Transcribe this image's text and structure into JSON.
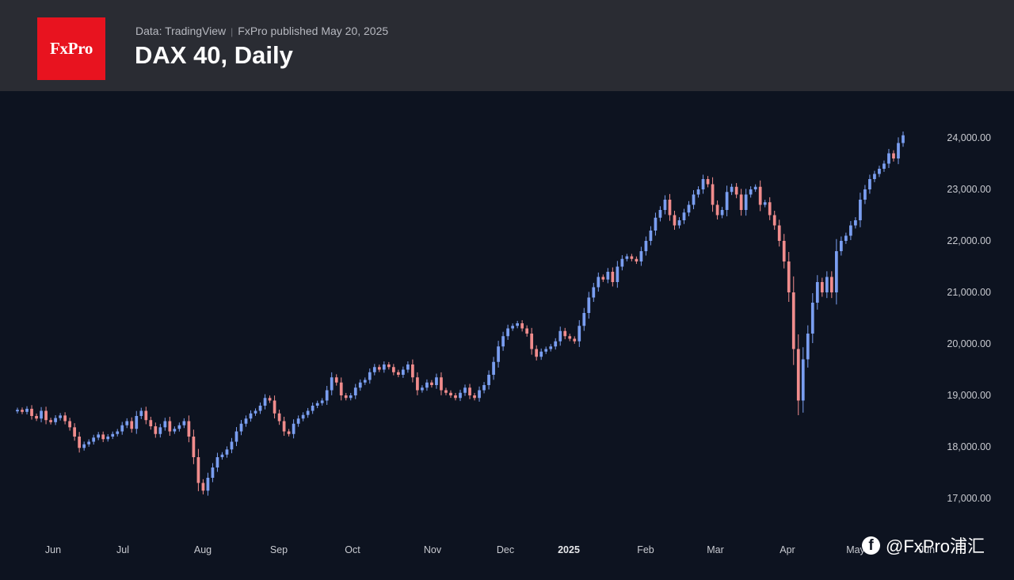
{
  "header": {
    "logo_text": "FxPro",
    "data_source": "Data: TradingView",
    "published": "FxPro published May 20, 2025",
    "title": "DAX 40, Daily"
  },
  "colors": {
    "up": "#7a9ef0",
    "down": "#f08c8c",
    "background": "#0d1320",
    "header": "#2a2c33",
    "logo": "#e8131f"
  },
  "watermark": {
    "icon": "facebook-icon",
    "text": "@FxPro浦汇"
  },
  "chart_data": {
    "type": "candlestick",
    "title": "DAX 40, Daily",
    "y_axis": {
      "position": "right",
      "ticks": [
        "24,000.00",
        "23,000.00",
        "22,000.00",
        "21,000.00",
        "20,000.00",
        "19,000.00",
        "18,000.00",
        "17,000.00"
      ],
      "range": [
        16500,
        24950
      ]
    },
    "x_axis": {
      "ticks": [
        {
          "label": "Jun",
          "bold": false
        },
        {
          "label": "Jul",
          "bold": false
        },
        {
          "label": "Aug",
          "bold": false
        },
        {
          "label": "Sep",
          "bold": false
        },
        {
          "label": "Oct",
          "bold": false
        },
        {
          "label": "Nov",
          "bold": false
        },
        {
          "label": "Dec",
          "bold": false
        },
        {
          "label": "2025",
          "bold": true
        },
        {
          "label": "Feb",
          "bold": false
        },
        {
          "label": "Mar",
          "bold": false
        },
        {
          "label": "Apr",
          "bold": false
        },
        {
          "label": "May",
          "bold": false
        },
        {
          "label": "Jun",
          "bold": false
        }
      ]
    },
    "grid": false,
    "close_series": [
      18720,
      18680,
      18740,
      18600,
      18550,
      18700,
      18520,
      18480,
      18560,
      18610,
      18500,
      18380,
      18200,
      17980,
      18050,
      18100,
      18180,
      18240,
      18150,
      18200,
      18250,
      18300,
      18420,
      18500,
      18350,
      18600,
      18700,
      18520,
      18400,
      18250,
      18380,
      18500,
      18300,
      18350,
      18420,
      18500,
      18200,
      17800,
      17300,
      17150,
      17400,
      17600,
      17800,
      17850,
      17950,
      18100,
      18300,
      18450,
      18550,
      18650,
      18700,
      18800,
      18950,
      18900,
      18650,
      18500,
      18300,
      18250,
      18450,
      18550,
      18620,
      18700,
      18800,
      18850,
      18900,
      19100,
      19350,
      19250,
      19000,
      18950,
      19000,
      19150,
      19250,
      19300,
      19450,
      19550,
      19500,
      19600,
      19550,
      19450,
      19400,
      19500,
      19600,
      19350,
      19100,
      19150,
      19250,
      19200,
      19350,
      19100,
      19050,
      19000,
      18950,
      19050,
      19150,
      19000,
      18950,
      19100,
      19200,
      19400,
      19650,
      19950,
      20150,
      20300,
      20350,
      20400,
      20300,
      20200,
      19900,
      19750,
      19850,
      19900,
      19950,
      20050,
      20250,
      20150,
      20100,
      20050,
      20350,
      20600,
      20900,
      21100,
      21300,
      21250,
      21400,
      21200,
      21500,
      21650,
      21700,
      21650,
      21600,
      21800,
      22000,
      22200,
      22450,
      22600,
      22800,
      22500,
      22300,
      22400,
      22550,
      22700,
      22900,
      23000,
      23200,
      23100,
      22700,
      22500,
      22600,
      22950,
      23050,
      22900,
      22600,
      22900,
      23000,
      23050,
      22700,
      22750,
      22500,
      22300,
      22000,
      21600,
      21000,
      19900,
      18900,
      19700,
      20200,
      20800,
      21200,
      21000,
      21300,
      21000,
      21800,
      22000,
      22100,
      22300,
      22400,
      22800,
      23000,
      23200,
      23300,
      23400,
      23500,
      23700,
      23600,
      23900,
      24050
    ]
  }
}
